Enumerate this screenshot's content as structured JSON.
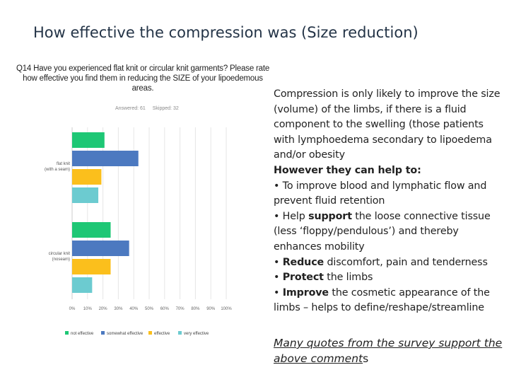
{
  "slide": {
    "title": "How effective the compression was (Size reduction)"
  },
  "survey": {
    "question": "Q14 Have you experienced flat knit or circular knit garments? Please rate how effective you find them in reducing the SIZE of your lipoedemous areas.",
    "answered": "Answered: 61",
    "skipped": "Skipped: 32"
  },
  "colors": {
    "not_effective": "#1ec775",
    "somewhat_effective": "#4c79c0",
    "effective": "#fbbf1c",
    "very_effective": "#6ccbd0"
  },
  "chart_data": {
    "type": "bar",
    "orientation": "horizontal",
    "categories": [
      "flat knit (with a seam)",
      "circular knit (noseam)"
    ],
    "category_labels": [
      [
        "flat knit",
        "(with a seam)"
      ],
      [
        "circular knit",
        "(noseam)"
      ]
    ],
    "series": [
      {
        "name": "not effective",
        "color": "#1ec775",
        "values": [
          21,
          25
        ]
      },
      {
        "name": "somewhat effective",
        "color": "#4c79c0",
        "values": [
          43,
          37
        ]
      },
      {
        "name": "effective",
        "color": "#fbbf1c",
        "values": [
          19,
          25
        ]
      },
      {
        "name": "very effective",
        "color": "#6ccbd0",
        "values": [
          17,
          13
        ]
      }
    ],
    "xticks": [
      "0%",
      "10%",
      "20%",
      "30%",
      "40%",
      "50%",
      "60%",
      "70%",
      "80%",
      "90%",
      "100%"
    ],
    "xlim": [
      0,
      100
    ],
    "legend_position": "bottom"
  },
  "body": {
    "para1": "Compression is only likely to improve the size (volume) of the limbs, if there is a fluid component to the swelling (those patients with lymphoedema secondary to lipoedema and/or obesity",
    "however": "However they can help to:",
    "bullet1": "• To improve blood and lymphatic flow and prevent fluid retention",
    "bullet2_pre": "• Help ",
    "bullet2_bold": "support",
    "bullet2_post": " the loose connective tissue (less ‘floppy/pendulous’) and thereby enhances mobility",
    "bullet3_pre": "• ",
    "bullet3_bold": "Reduce",
    "bullet3_post": " discomfort, pain and tenderness",
    "bullet4_pre": "• ",
    "bullet4_bold": "Protect",
    "bullet4_post": " the limbs",
    "bullet5_pre": "• ",
    "bullet5_bold": "Improve",
    "bullet5_post": " the cosmetic appearance of the limbs – helps to define/reshape/streamline",
    "quote_underlined": "Many quotes from the survey support the above comment",
    "quote_tail": "s"
  }
}
